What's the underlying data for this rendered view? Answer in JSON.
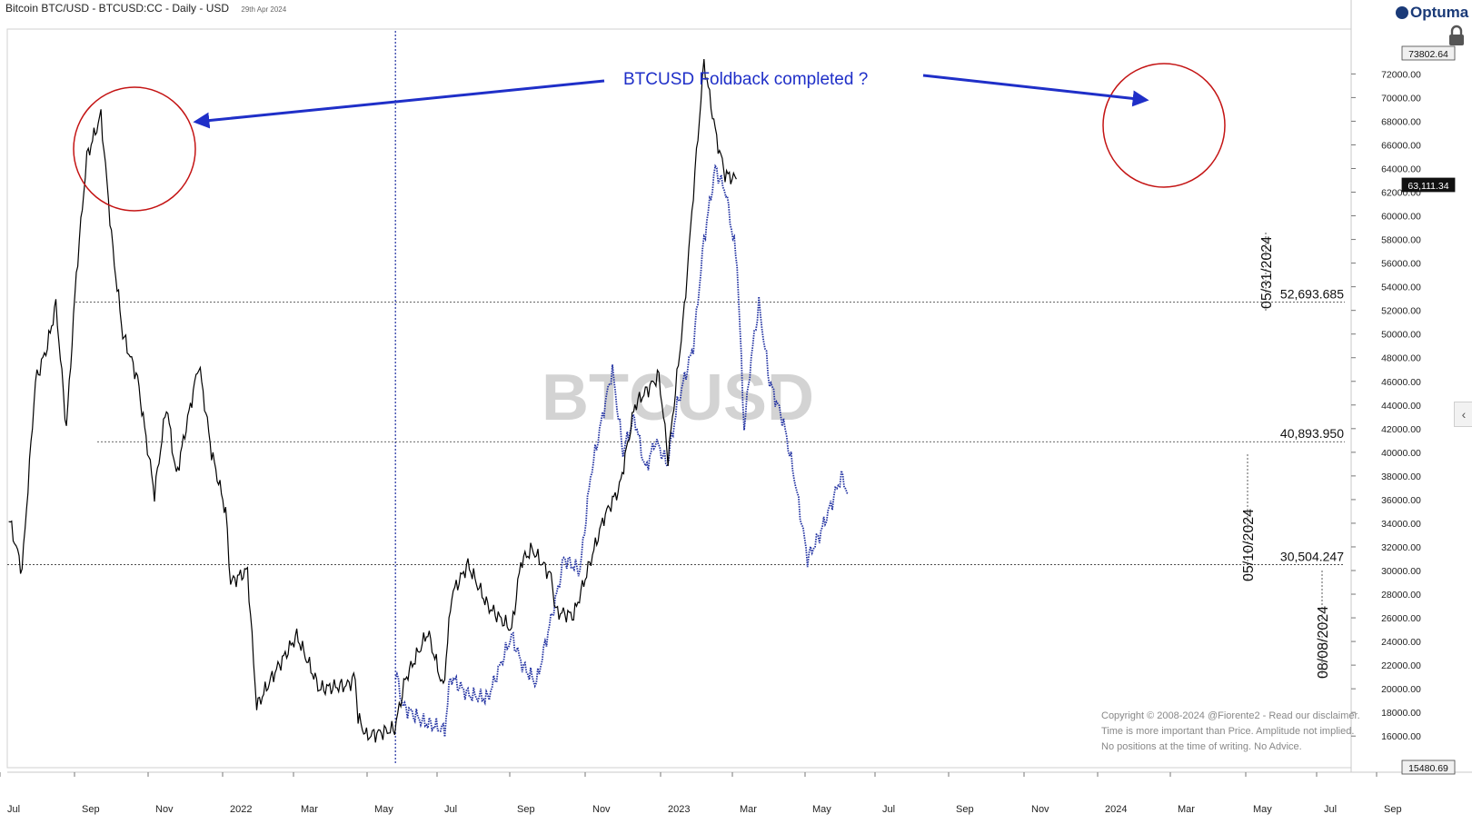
{
  "header": {
    "title": "Bitcoin BTC/USD - BTCUSD:CC - Daily - USD",
    "date": "29th Apr 2024"
  },
  "brand": {
    "name": "Optuma"
  },
  "watermark": "BTCUSD",
  "annotation": "BTCUSD Foldback completed ?",
  "copyright": [
    "Copyright © 2008-2024 @Fiorente2 -  Read our disclaimer.",
    "Time is more important than Price. Amplitude not implied.",
    "No positions at the time of writing. No Advice."
  ],
  "icons": {
    "logo": "optuma-logo-icon",
    "lock": "lock-icon",
    "side": "chevron-left-icon"
  },
  "colors": {
    "price": "#000000",
    "overlay": "#1f2fa0",
    "annotation": "#1f2fc8",
    "circle": "#c41414"
  },
  "chart_data": {
    "type": "line",
    "ylim": [
      15000,
      75000
    ],
    "price_axis_ticks": [
      "16000.00",
      "18000.00",
      "20000.00",
      "22000.00",
      "24000.00",
      "26000.00",
      "28000.00",
      "30000.00",
      "32000.00",
      "34000.00",
      "36000.00",
      "38000.00",
      "40000.00",
      "42000.00",
      "44000.00",
      "46000.00",
      "48000.00",
      "50000.00",
      "52000.00",
      "54000.00",
      "56000.00",
      "58000.00",
      "60000.00",
      "62000.00",
      "64000.00",
      "66000.00",
      "68000.00",
      "70000.00",
      "72000.00"
    ],
    "time_axis_labels": [
      "Jul",
      "Sep",
      "Nov",
      "2022",
      "Mar",
      "May",
      "Jul",
      "Sep",
      "Nov",
      "2023",
      "Mar",
      "May",
      "Jul",
      "Sep",
      "Nov",
      "2024",
      "Mar",
      "May",
      "Jul",
      "Sep"
    ],
    "axis_flags": {
      "high": "73802.64",
      "last": "63,111.34",
      "low": "15480.69"
    },
    "levels": [
      {
        "label": "52,693.685",
        "value": 52693.685
      },
      {
        "label": "40,893.950",
        "value": 40893.95
      },
      {
        "label": "30,504.247",
        "value": 30504.247
      }
    ],
    "date_markers": [
      "05/31/2024",
      "05/10/2024",
      "08/08/2024"
    ],
    "series": [
      {
        "key": "price",
        "x": [
          "2021-07-01",
          "2021-07-20",
          "2021-08-08",
          "2021-08-25",
          "2021-09-06",
          "2021-09-21",
          "2021-10-05",
          "2021-10-20",
          "2021-11-09",
          "2021-11-26",
          "2021-12-10",
          "2021-12-31",
          "2022-01-10",
          "2022-01-24",
          "2022-02-10",
          "2022-02-24",
          "2022-03-28",
          "2022-04-15",
          "2022-05-05",
          "2022-05-12",
          "2022-06-05",
          "2022-06-18",
          "2022-07-10",
          "2022-08-14",
          "2022-09-15",
          "2022-10-25",
          "2022-11-05",
          "2022-11-09",
          "2022-11-21",
          "2022-12-31",
          "2023-01-15",
          "2023-02-16",
          "2023-03-10",
          "2023-03-22",
          "2023-04-14",
          "2023-05-12",
          "2023-06-15",
          "2023-06-28",
          "2023-07-14",
          "2023-08-10",
          "2023-08-17",
          "2023-09-11",
          "2023-10-24",
          "2023-11-15",
          "2023-12-07",
          "2024-01-10",
          "2024-01-23",
          "2024-02-15",
          "2024-02-28",
          "2024-03-14",
          "2024-04-01",
          "2024-04-13",
          "2024-04-29"
        ],
        "y": [
          34500,
          30000,
          46000,
          49000,
          52500,
          42000,
          55000,
          65000,
          68500,
          57000,
          50000,
          46200,
          42000,
          36500,
          44000,
          38000,
          47500,
          40000,
          35000,
          29000,
          30000,
          18500,
          21000,
          24500,
          20000,
          20300,
          21000,
          17500,
          16000,
          16600,
          20800,
          24800,
          20000,
          28000,
          30500,
          27000,
          25000,
          30700,
          31800,
          29500,
          26500,
          26200,
          34500,
          37000,
          44000,
          46500,
          39500,
          52000,
          62000,
          73000,
          66500,
          63500,
          63100
        ]
      },
      {
        "key": "overlay",
        "x": [
          "2023-01-01",
          "2023-01-12",
          "2023-02-10",
          "2023-03-12",
          "2023-03-20",
          "2023-04-14",
          "2023-05-12",
          "2023-06-15",
          "2023-06-30",
          "2023-07-20",
          "2023-08-20",
          "2023-08-28",
          "2023-09-20",
          "2023-10-05",
          "2023-10-20",
          "2023-11-05",
          "2023-11-20",
          "2023-12-06",
          "2023-12-22",
          "2024-01-05",
          "2024-01-22",
          "2024-02-05",
          "2024-02-28",
          "2024-03-14",
          "2024-03-30",
          "2024-04-14",
          "2024-04-30",
          "2024-05-10",
          "2024-05-20",
          "2024-05-31",
          "2024-06-15",
          "2024-07-05",
          "2024-07-20",
          "2024-08-08",
          "2024-08-25",
          "2024-09-10",
          "2024-09-25",
          "2024-10-05"
        ],
        "y": [
          21500,
          18500,
          17200,
          16500,
          21000,
          19500,
          19200,
          24500,
          22000,
          20500,
          28500,
          31000,
          30000,
          38000,
          42500,
          47000,
          40000,
          43000,
          38500,
          41000,
          39000,
          44000,
          49000,
          58000,
          64000,
          62000,
          56000,
          42000,
          48000,
          52500,
          46000,
          42500,
          38000,
          31000,
          33000,
          35500,
          38000,
          36500
        ]
      }
    ]
  }
}
